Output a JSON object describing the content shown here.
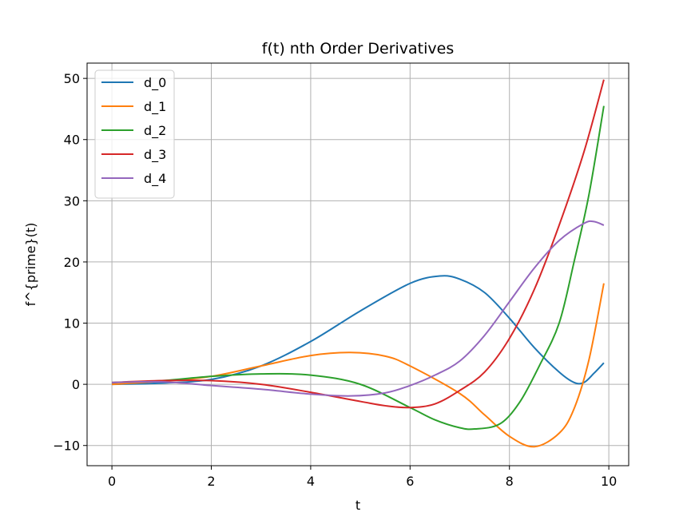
{
  "chart_data": {
    "type": "line",
    "title": "f(t) nth Order Derivatives",
    "xlabel": "t",
    "ylabel": "f^{prime}(t)",
    "xlim": [
      -0.5,
      10.4
    ],
    "ylim": [
      -13.3,
      52.5
    ],
    "xticks": [
      0,
      2,
      4,
      6,
      8,
      10
    ],
    "yticks": [
      -10,
      0,
      10,
      20,
      30,
      40,
      50
    ],
    "ytick_labels": [
      "−10",
      "0",
      "10",
      "20",
      "30",
      "40",
      "50"
    ],
    "grid": true,
    "legend_position": "upper-left",
    "series": [
      {
        "name": "d_0",
        "color": "#1f77b4",
        "points": [
          [
            0,
            0.0
          ],
          [
            1,
            0.2
          ],
          [
            2,
            0.8
          ],
          [
            3,
            3.0
          ],
          [
            4,
            7.0
          ],
          [
            5,
            12.0
          ],
          [
            6,
            16.5
          ],
          [
            6.6,
            17.7
          ],
          [
            7,
            17.2
          ],
          [
            7.5,
            15.0
          ],
          [
            8,
            10.8
          ],
          [
            8.5,
            6.0
          ],
          [
            9,
            2.0
          ],
          [
            9.3,
            0.3
          ],
          [
            9.5,
            0.3
          ],
          [
            9.7,
            1.8
          ],
          [
            9.9,
            3.5
          ]
        ]
      },
      {
        "name": "d_1",
        "color": "#ff7f0e",
        "points": [
          [
            0,
            0.0
          ],
          [
            1,
            0.5
          ],
          [
            2,
            1.3
          ],
          [
            3,
            3.0
          ],
          [
            4,
            4.7
          ],
          [
            4.8,
            5.2
          ],
          [
            5.5,
            4.6
          ],
          [
            6,
            3.0
          ],
          [
            7,
            -1.5
          ],
          [
            7.5,
            -5.0
          ],
          [
            8,
            -8.5
          ],
          [
            8.5,
            -10.2
          ],
          [
            9,
            -8.0
          ],
          [
            9.3,
            -4.0
          ],
          [
            9.6,
            4.0
          ],
          [
            9.9,
            16.5
          ]
        ]
      },
      {
        "name": "d_2",
        "color": "#2ca02c",
        "points": [
          [
            0,
            0.3
          ],
          [
            1,
            0.6
          ],
          [
            2,
            1.3
          ],
          [
            3,
            1.7
          ],
          [
            4,
            1.5
          ],
          [
            5,
            0.0
          ],
          [
            6,
            -3.8
          ],
          [
            6.5,
            -5.8
          ],
          [
            7,
            -7.1
          ],
          [
            7.3,
            -7.3
          ],
          [
            7.8,
            -6.5
          ],
          [
            8.2,
            -3.0
          ],
          [
            8.6,
            3.0
          ],
          [
            9,
            10.0
          ],
          [
            9.3,
            20.0
          ],
          [
            9.6,
            31.0
          ],
          [
            9.9,
            45.5
          ]
        ]
      },
      {
        "name": "d_3",
        "color": "#d62728",
        "points": [
          [
            0,
            0.3
          ],
          [
            1,
            0.6
          ],
          [
            2,
            0.6
          ],
          [
            3,
            0.0
          ],
          [
            4,
            -1.3
          ],
          [
            5,
            -2.8
          ],
          [
            5.5,
            -3.5
          ],
          [
            6,
            -3.8
          ],
          [
            6.5,
            -3.2
          ],
          [
            7,
            -1.0
          ],
          [
            7.5,
            2.0
          ],
          [
            8,
            7.5
          ],
          [
            8.5,
            15.5
          ],
          [
            9,
            26.0
          ],
          [
            9.5,
            38.0
          ],
          [
            9.9,
            49.8
          ]
        ]
      },
      {
        "name": "d_4",
        "color": "#9467bd",
        "points": [
          [
            0,
            0.3
          ],
          [
            1,
            0.4
          ],
          [
            2,
            -0.2
          ],
          [
            3,
            -0.8
          ],
          [
            4,
            -1.6
          ],
          [
            4.8,
            -1.9
          ],
          [
            5.5,
            -1.4
          ],
          [
            6,
            -0.2
          ],
          [
            6.5,
            1.5
          ],
          [
            7,
            3.8
          ],
          [
            7.5,
            8.0
          ],
          [
            8,
            13.5
          ],
          [
            8.5,
            19.0
          ],
          [
            9,
            23.5
          ],
          [
            9.5,
            26.3
          ],
          [
            9.7,
            26.6
          ],
          [
            9.9,
            26.0
          ]
        ]
      }
    ]
  }
}
